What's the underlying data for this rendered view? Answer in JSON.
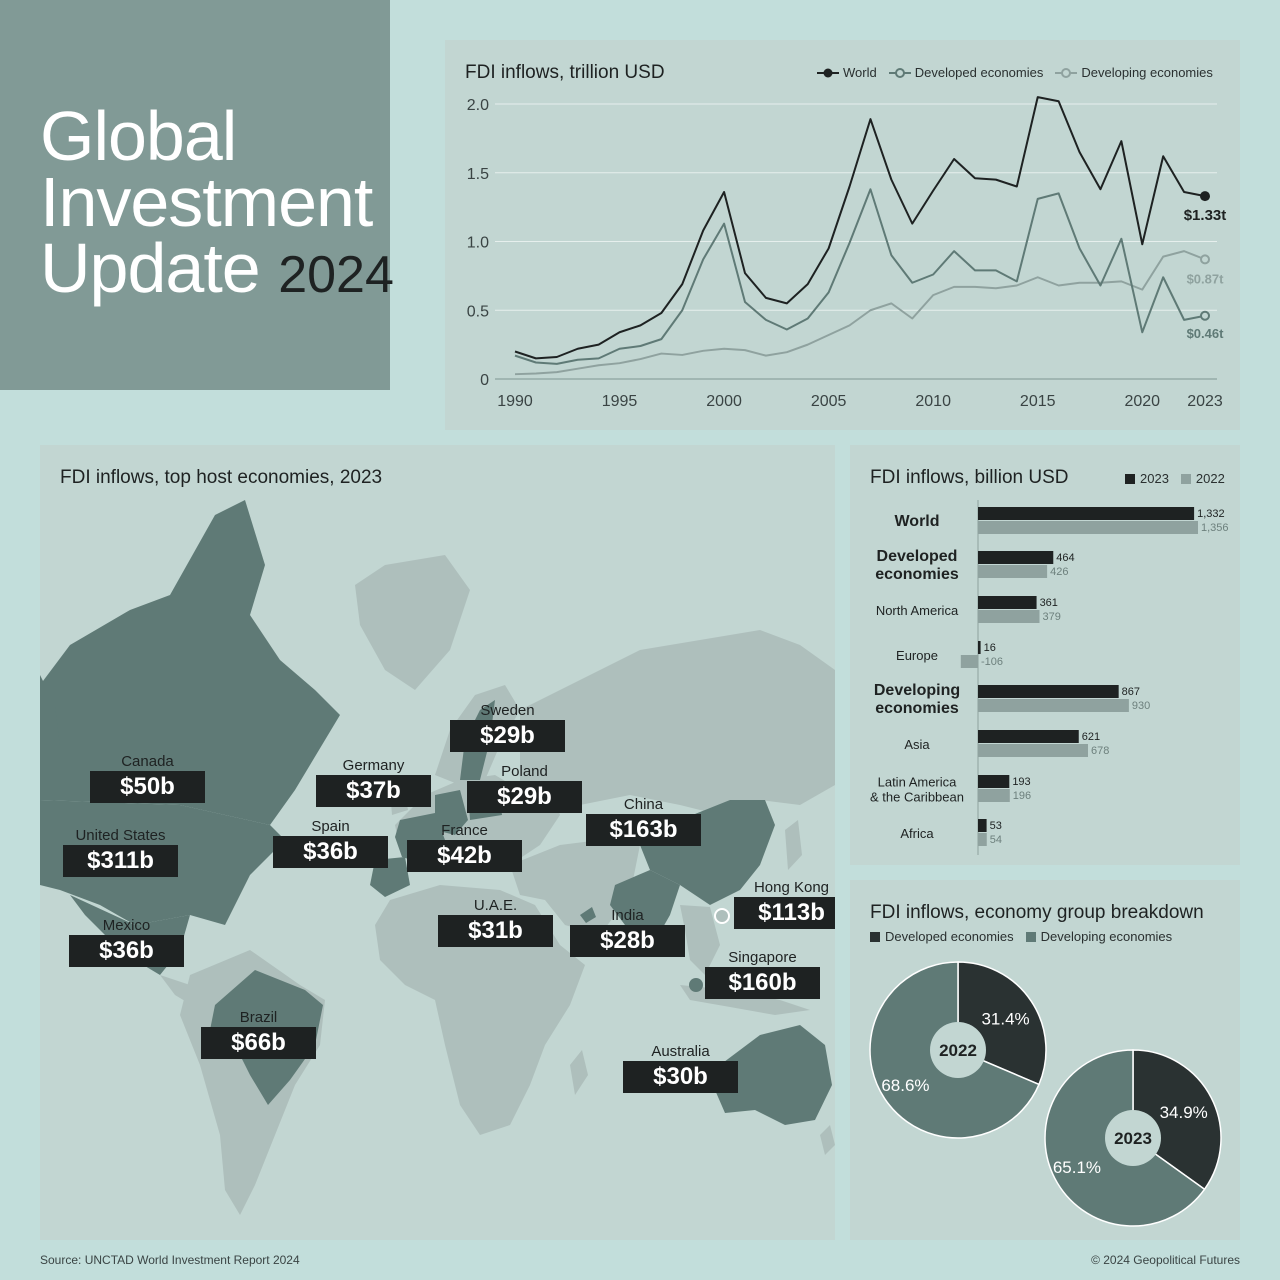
{
  "title": {
    "line1": "Global",
    "line2": "Investment",
    "line3": "Update",
    "year": "2024"
  },
  "footer": {
    "source": "Source: UNCTAD World Investment Report 2024",
    "copyright": "© 2024 Geopolitical Futures"
  },
  "colors": {
    "world": "#1e2222",
    "developed": "#5f7a76",
    "developing": "#8fa29f",
    "land": "#aebfbc",
    "highlight": "#5f7a76"
  },
  "chart_data": [
    {
      "type": "line",
      "title": "FDI inflows, trillion USD",
      "ylim": [
        0,
        2.0
      ],
      "yticks": [
        0,
        0.5,
        1.0,
        1.5,
        2.0
      ],
      "ytick_labels": [
        "0",
        "0.5",
        "1.0",
        "1.5",
        "2.0"
      ],
      "xtick_labels": [
        "1990",
        "1995",
        "2000",
        "2005",
        "2010",
        "2015",
        "2020",
        "2023"
      ],
      "xtick_values": [
        1990,
        1995,
        2000,
        2005,
        2010,
        2015,
        2020,
        2023
      ],
      "x": [
        1990,
        1991,
        1992,
        1993,
        1994,
        1995,
        1996,
        1997,
        1998,
        1999,
        2000,
        2001,
        2002,
        2003,
        2004,
        2005,
        2006,
        2007,
        2008,
        2009,
        2010,
        2011,
        2012,
        2013,
        2014,
        2015,
        2016,
        2017,
        2018,
        2019,
        2020,
        2021,
        2022,
        2023
      ],
      "series": [
        {
          "name": "World",
          "values": [
            0.2,
            0.15,
            0.16,
            0.22,
            0.25,
            0.34,
            0.39,
            0.48,
            0.69,
            1.08,
            1.36,
            0.77,
            0.59,
            0.55,
            0.69,
            0.95,
            1.4,
            1.89,
            1.45,
            1.13,
            1.37,
            1.6,
            1.46,
            1.45,
            1.4,
            2.05,
            2.02,
            1.65,
            1.38,
            1.73,
            0.98,
            1.62,
            1.36,
            1.33
          ],
          "end_label": "$1.33t"
        },
        {
          "name": "Developed economies",
          "values": [
            0.17,
            0.12,
            0.11,
            0.14,
            0.15,
            0.22,
            0.24,
            0.29,
            0.5,
            0.87,
            1.13,
            0.56,
            0.43,
            0.36,
            0.44,
            0.63,
            0.99,
            1.38,
            0.9,
            0.7,
            0.76,
            0.93,
            0.79,
            0.79,
            0.71,
            1.31,
            1.35,
            0.95,
            0.68,
            1.02,
            0.34,
            0.74,
            0.43,
            0.46
          ],
          "end_label": "$0.46t"
        },
        {
          "name": "Developing economies",
          "values": [
            0.035,
            0.04,
            0.05,
            0.075,
            0.1,
            0.115,
            0.145,
            0.185,
            0.175,
            0.205,
            0.22,
            0.21,
            0.17,
            0.195,
            0.25,
            0.32,
            0.39,
            0.5,
            0.55,
            0.44,
            0.61,
            0.67,
            0.67,
            0.66,
            0.68,
            0.74,
            0.68,
            0.7,
            0.7,
            0.71,
            0.65,
            0.89,
            0.93,
            0.87
          ],
          "end_label": "$0.87t"
        }
      ]
    },
    {
      "type": "bar",
      "title": "FDI inflows, billion USD",
      "categories": [
        "World",
        "Developed economies",
        "North America",
        "Europe",
        "Developing economies",
        "Asia",
        "Latin America & the Caribbean",
        "Africa"
      ],
      "series": [
        {
          "name": "2023",
          "values": [
            1332,
            464,
            361,
            16,
            867,
            621,
            193,
            53
          ],
          "labels": [
            "1,332",
            "464",
            "361",
            "16",
            "867",
            "621",
            "193",
            "53"
          ]
        },
        {
          "name": "2022",
          "values": [
            1356,
            426,
            379,
            -106,
            930,
            678,
            196,
            54
          ],
          "labels": [
            "1,356",
            "426",
            "379",
            "-106",
            "930",
            "678",
            "196",
            "54"
          ]
        }
      ]
    },
    {
      "type": "pie",
      "title": "FDI inflows, economy group breakdown",
      "legend": [
        "Developed economies",
        "Developing economies"
      ],
      "pies": [
        {
          "label": "2022",
          "slices": [
            {
              "name": "Developed economies",
              "value": 31.4,
              "label": "31.4%"
            },
            {
              "name": "Developing economies",
              "value": 68.6,
              "label": "68.6%"
            }
          ]
        },
        {
          "label": "2023",
          "slices": [
            {
              "name": "Developed economies",
              "value": 34.9,
              "label": "34.9%"
            },
            {
              "name": "Developing economies",
              "value": 65.1,
              "label": "65.1%"
            }
          ]
        }
      ]
    }
  ],
  "map": {
    "title": "FDI inflows, top host economies, 2023",
    "economies": [
      {
        "name": "Sweden",
        "value": "$29b"
      },
      {
        "name": "Canada",
        "value": "$50b"
      },
      {
        "name": "Germany",
        "value": "$37b"
      },
      {
        "name": "Poland",
        "value": "$29b"
      },
      {
        "name": "China",
        "value": "$163b"
      },
      {
        "name": "United States",
        "value": "$311b"
      },
      {
        "name": "Spain",
        "value": "$36b"
      },
      {
        "name": "France",
        "value": "$42b"
      },
      {
        "name": "Hong Kong",
        "value": "$113b"
      },
      {
        "name": "U.A.E.",
        "value": "$31b"
      },
      {
        "name": "India",
        "value": "$28b"
      },
      {
        "name": "Mexico",
        "value": "$36b"
      },
      {
        "name": "Singapore",
        "value": "$160b"
      },
      {
        "name": "Brazil",
        "value": "$66b"
      },
      {
        "name": "Australia",
        "value": "$30b"
      }
    ]
  }
}
